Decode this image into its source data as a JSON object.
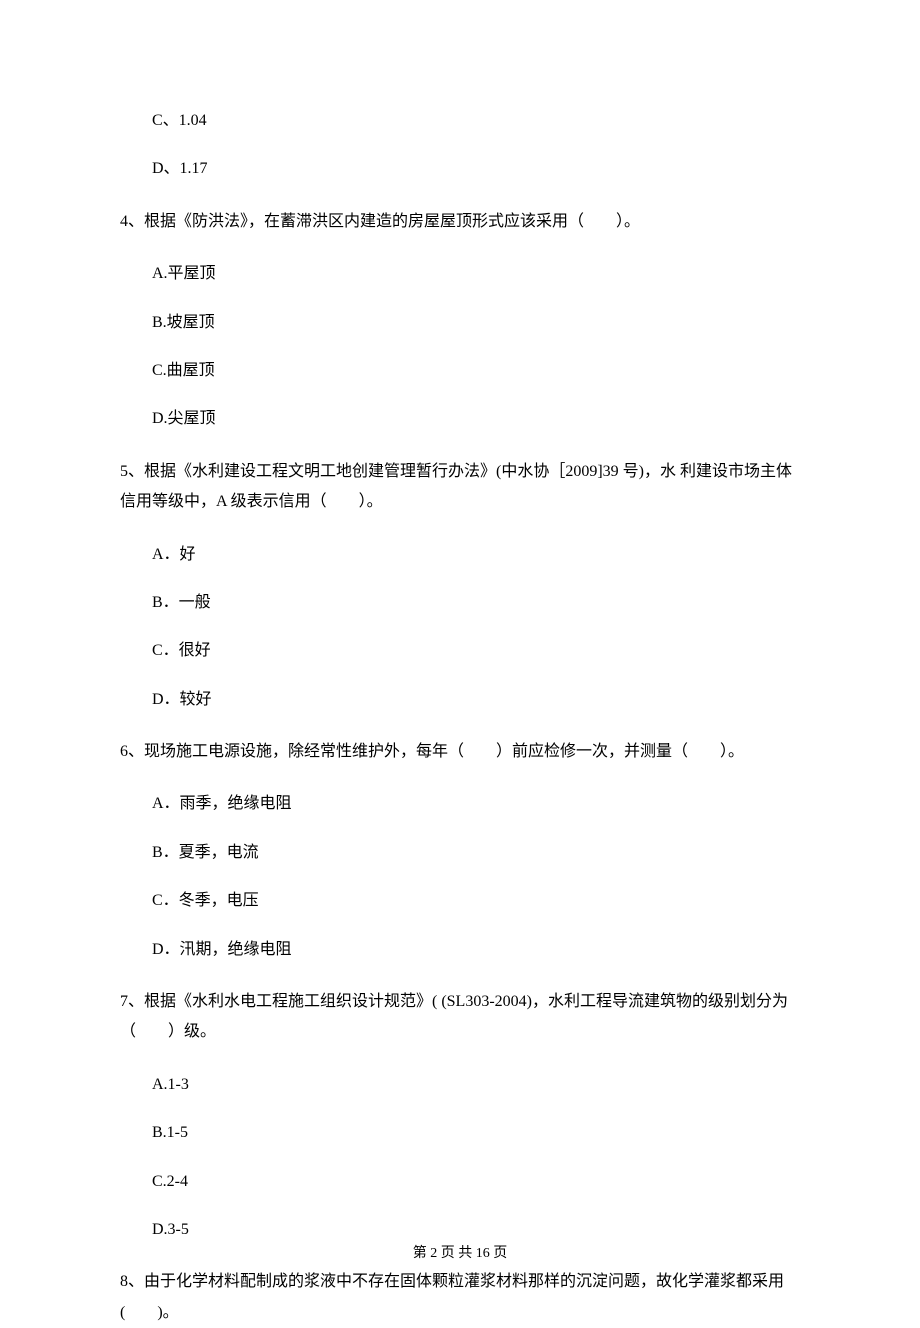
{
  "options_top": [
    "C、1.04",
    "D、1.17"
  ],
  "q4": {
    "text": "4、根据《防洪法》，在蓄滞洪区内建造的房屋屋顶形式应该采用（　　）。",
    "options": [
      "A.平屋顶",
      "B.坡屋顶",
      "C.曲屋顶",
      "D.尖屋顶"
    ]
  },
  "q5": {
    "text": "5、根据《水利建设工程文明工地创建管理暂行办法》(中水协［2009]39 号)，水 利建设市场主体信用等级中，A 级表示信用（　　）。",
    "options": [
      "A．好",
      "B．一般",
      "C．很好",
      "D．较好"
    ]
  },
  "q6": {
    "text": "6、现场施工电源设施，除经常性维护外，每年（　　）前应检修一次，并测量（　　）。",
    "options": [
      "A．雨季，绝缘电阻",
      "B．夏季，电流",
      "C．冬季，电压",
      "D．汛期，绝缘电阻"
    ]
  },
  "q7": {
    "text": "7、根据《水利水电工程施工组织设计规范》( (SL303-2004)，水利工程导流建筑物的级别划分为（　　）级。",
    "options": [
      "A.1-3",
      "B.1-5",
      "C.2-4",
      "D.3-5"
    ]
  },
  "q8": {
    "text": "8、由于化学材料配制成的浆液中不存在固体颗粒灌浆材料那样的沉淀问题，故化学灌浆都采用(　　)。"
  },
  "footer": "第 2 页 共 16 页"
}
